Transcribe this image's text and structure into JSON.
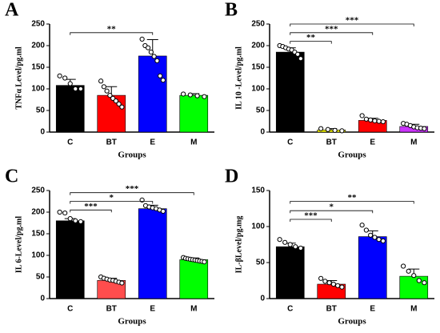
{
  "chart_data": [
    {
      "type": "bar",
      "title": "A",
      "ylabel": "TNFα Level/pg.ml",
      "xlabel": "Groups",
      "categories": [
        "C",
        "BT",
        "E",
        "M"
      ],
      "values": [
        108,
        85,
        176,
        85
      ],
      "errors": [
        14,
        20,
        38,
        4
      ],
      "colors": [
        "#000000",
        "#ff0000",
        "#0000ff",
        "#00ff00"
      ],
      "points": [
        [
          130,
          125,
          112,
          100,
          100
        ],
        [
          118,
          105,
          95,
          85,
          78,
          72,
          65,
          58
        ],
        [
          215,
          200,
          195,
          185,
          175,
          165,
          130,
          120
        ],
        [
          88,
          86,
          84,
          82
        ]
      ],
      "ylim": [
        0,
        250
      ],
      "yticks": [
        0,
        50,
        100,
        150,
        200,
        250
      ],
      "annotations": [
        {
          "text": "**",
          "from": 0,
          "to": 2,
          "y": 230
        }
      ]
    },
    {
      "type": "bar",
      "title": "B",
      "ylabel": "IL 10 -Level/pg.ml",
      "xlabel": "Groups",
      "categories": [
        "C",
        "BT",
        "E",
        "M"
      ],
      "values": [
        185,
        5,
        27,
        13
      ],
      "errors": [
        10,
        3,
        5,
        5
      ],
      "colors": [
        "#000000",
        "#ffff00",
        "#ff0000",
        "#cc33ff"
      ],
      "points": [
        [
          200,
          198,
          195,
          192,
          190,
          185,
          180,
          170
        ],
        [
          8,
          6,
          4,
          3
        ],
        [
          38,
          30,
          28,
          26,
          25,
          24
        ],
        [
          20,
          18,
          15,
          12,
          10,
          9,
          8
        ]
      ],
      "ylim": [
        0,
        250
      ],
      "yticks": [
        0,
        50,
        100,
        150,
        200,
        250
      ],
      "annotations": [
        {
          "text": "**",
          "from": 0,
          "to": 1,
          "y": 210
        },
        {
          "text": "***",
          "from": 0,
          "to": 2,
          "y": 230
        },
        {
          "text": "***",
          "from": 0,
          "to": 3,
          "y": 250
        }
      ]
    },
    {
      "type": "bar",
      "title": "C",
      "ylabel": "IL 6-Level/pg.ml",
      "xlabel": "Groups",
      "categories": [
        "C",
        "BT",
        "E",
        "M"
      ],
      "values": [
        180,
        42,
        208,
        90
      ],
      "errors": [
        5,
        5,
        8,
        4
      ],
      "colors": [
        "#000000",
        "#ff4d4d",
        "#0000ff",
        "#00ff00"
      ],
      "points": [
        [
          200,
          198,
          185,
          180,
          178
        ],
        [
          50,
          47,
          45,
          43,
          42,
          40,
          38,
          36
        ],
        [
          228,
          215,
          212,
          210,
          208,
          205,
          202
        ],
        [
          95,
          93,
          92,
          91,
          90,
          89,
          88,
          87,
          86,
          85
        ]
      ],
      "ylim": [
        0,
        250
      ],
      "yticks": [
        0,
        50,
        100,
        150,
        200,
        250
      ],
      "annotations": [
        {
          "text": "***",
          "from": 0,
          "to": 1,
          "y": 205
        },
        {
          "text": "*",
          "from": 0,
          "to": 2,
          "y": 225
        },
        {
          "text": "***",
          "from": 0,
          "to": 3,
          "y": 245
        }
      ]
    },
    {
      "type": "bar",
      "title": "D",
      "ylabel": "IL-βLevel/pg.mg",
      "xlabel": "Groups",
      "categories": [
        "C",
        "BT",
        "E",
        "M"
      ],
      "values": [
        72,
        20,
        86,
        31
      ],
      "errors": [
        5,
        5,
        8,
        10
      ],
      "colors": [
        "#000000",
        "#ff0000",
        "#0000ff",
        "#00ff00"
      ],
      "points": [
        [
          82,
          78,
          75,
          72,
          70
        ],
        [
          28,
          24,
          22,
          20,
          18,
          16
        ],
        [
          102,
          95,
          88,
          85,
          82,
          80
        ],
        [
          45,
          38,
          32,
          25,
          22
        ]
      ],
      "ylim": [
        0,
        150
      ],
      "yticks": [
        0,
        50,
        100,
        150
      ],
      "annotations": [
        {
          "text": "***",
          "from": 0,
          "to": 1,
          "y": 110
        },
        {
          "text": "*",
          "from": 0,
          "to": 2,
          "y": 122
        },
        {
          "text": "**",
          "from": 0,
          "to": 3,
          "y": 135
        }
      ]
    }
  ]
}
